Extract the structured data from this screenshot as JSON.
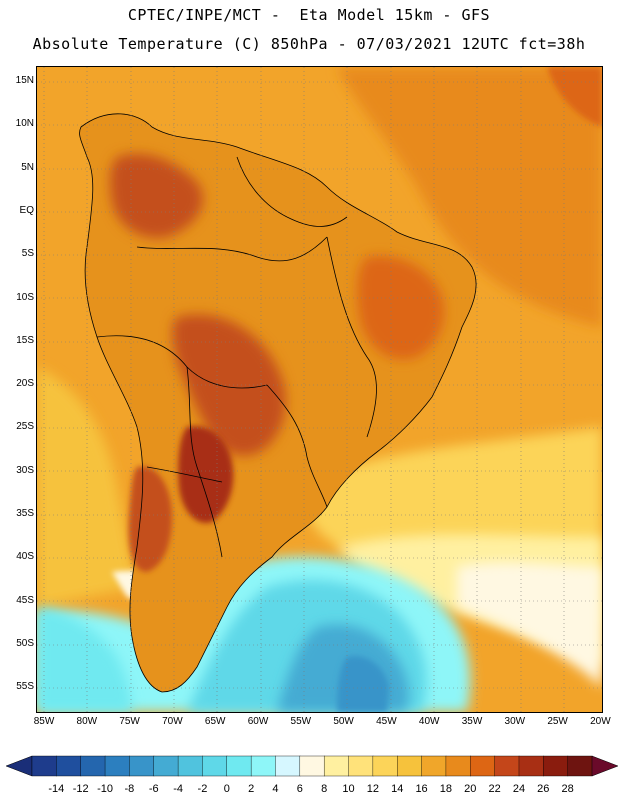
{
  "header": {
    "line1": "CPTEC/INPE/MCT -  Eta Model 15km - GFS",
    "line2": "Absolute Temperature (C) 850hPa - 07/03/2021 12UTC fct=38h"
  },
  "map": {
    "latitude_labels": [
      "15N",
      "10N",
      "5N",
      "EQ",
      "5S",
      "10S",
      "15S",
      "20S",
      "25S",
      "30S",
      "35S",
      "40S",
      "45S",
      "50S",
      "55S"
    ],
    "longitude_labels": [
      "85W",
      "80W",
      "75W",
      "70W",
      "65W",
      "60W",
      "55W",
      "50W",
      "45W",
      "40W",
      "35W",
      "30W",
      "25W",
      "20W"
    ],
    "ocean_cold_region": "cold-air-southwest-atlantic",
    "land_color": "#e6921c",
    "warm_core_color": "#c4501a"
  },
  "colorbar": {
    "labels": [
      "-14",
      "-12",
      "-10",
      "-8",
      "-6",
      "-4",
      "-2",
      "0",
      "2",
      "4",
      "6",
      "8",
      "10",
      "12",
      "14",
      "16",
      "18",
      "20",
      "22",
      "24",
      "26",
      "28"
    ],
    "colors": [
      "#1e3c8c",
      "#1f4f9e",
      "#2466ae",
      "#2c7fbf",
      "#3894c9",
      "#44abd3",
      "#50c3de",
      "#5fd8e8",
      "#6fe9f0",
      "#8ef6f8",
      "#d6f7ff",
      "#fff8e2",
      "#fff0a0",
      "#ffe27a",
      "#fcd459",
      "#f6c23c",
      "#f0a62a",
      "#e88a1c",
      "#dd6614",
      "#c4461a",
      "#a82f14",
      "#8a1c0e",
      "#6e1410"
    ],
    "low_arrow_color": "#1a2e78",
    "high_arrow_color": "#6a0a2a"
  }
}
